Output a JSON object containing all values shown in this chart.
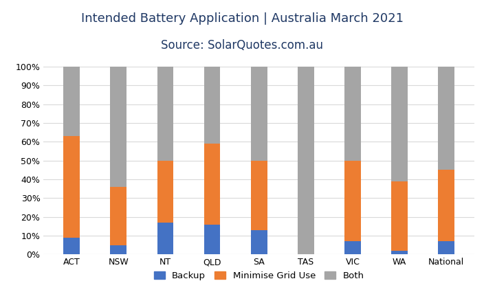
{
  "categories": [
    "ACT",
    "NSW",
    "NT",
    "QLD",
    "SA",
    "TAS",
    "VIC",
    "WA",
    "National"
  ],
  "backup": [
    9,
    5,
    17,
    16,
    13,
    0,
    7,
    2,
    7
  ],
  "minimise_grid_use": [
    54,
    31,
    33,
    43,
    37,
    0,
    43,
    37,
    38
  ],
  "both": [
    37,
    64,
    50,
    41,
    50,
    100,
    50,
    61,
    55
  ],
  "colors": {
    "backup": "#4472c4",
    "minimise": "#ed7d31",
    "both": "#a5a5a5"
  },
  "title_line1": "Intended Battery Application | Australia March 2021",
  "title_line2": "Source: SolarQuotes.com.au",
  "yticks": [
    0,
    10,
    20,
    30,
    40,
    50,
    60,
    70,
    80,
    90,
    100
  ],
  "background_color": "#ffffff",
  "legend_labels": [
    "Backup",
    "Minimise Grid Use",
    "Both"
  ],
  "bar_width": 0.35,
  "title_color": "#1f3864",
  "title_fontsize": 13,
  "subtitle_fontsize": 12,
  "tick_fontsize": 9
}
